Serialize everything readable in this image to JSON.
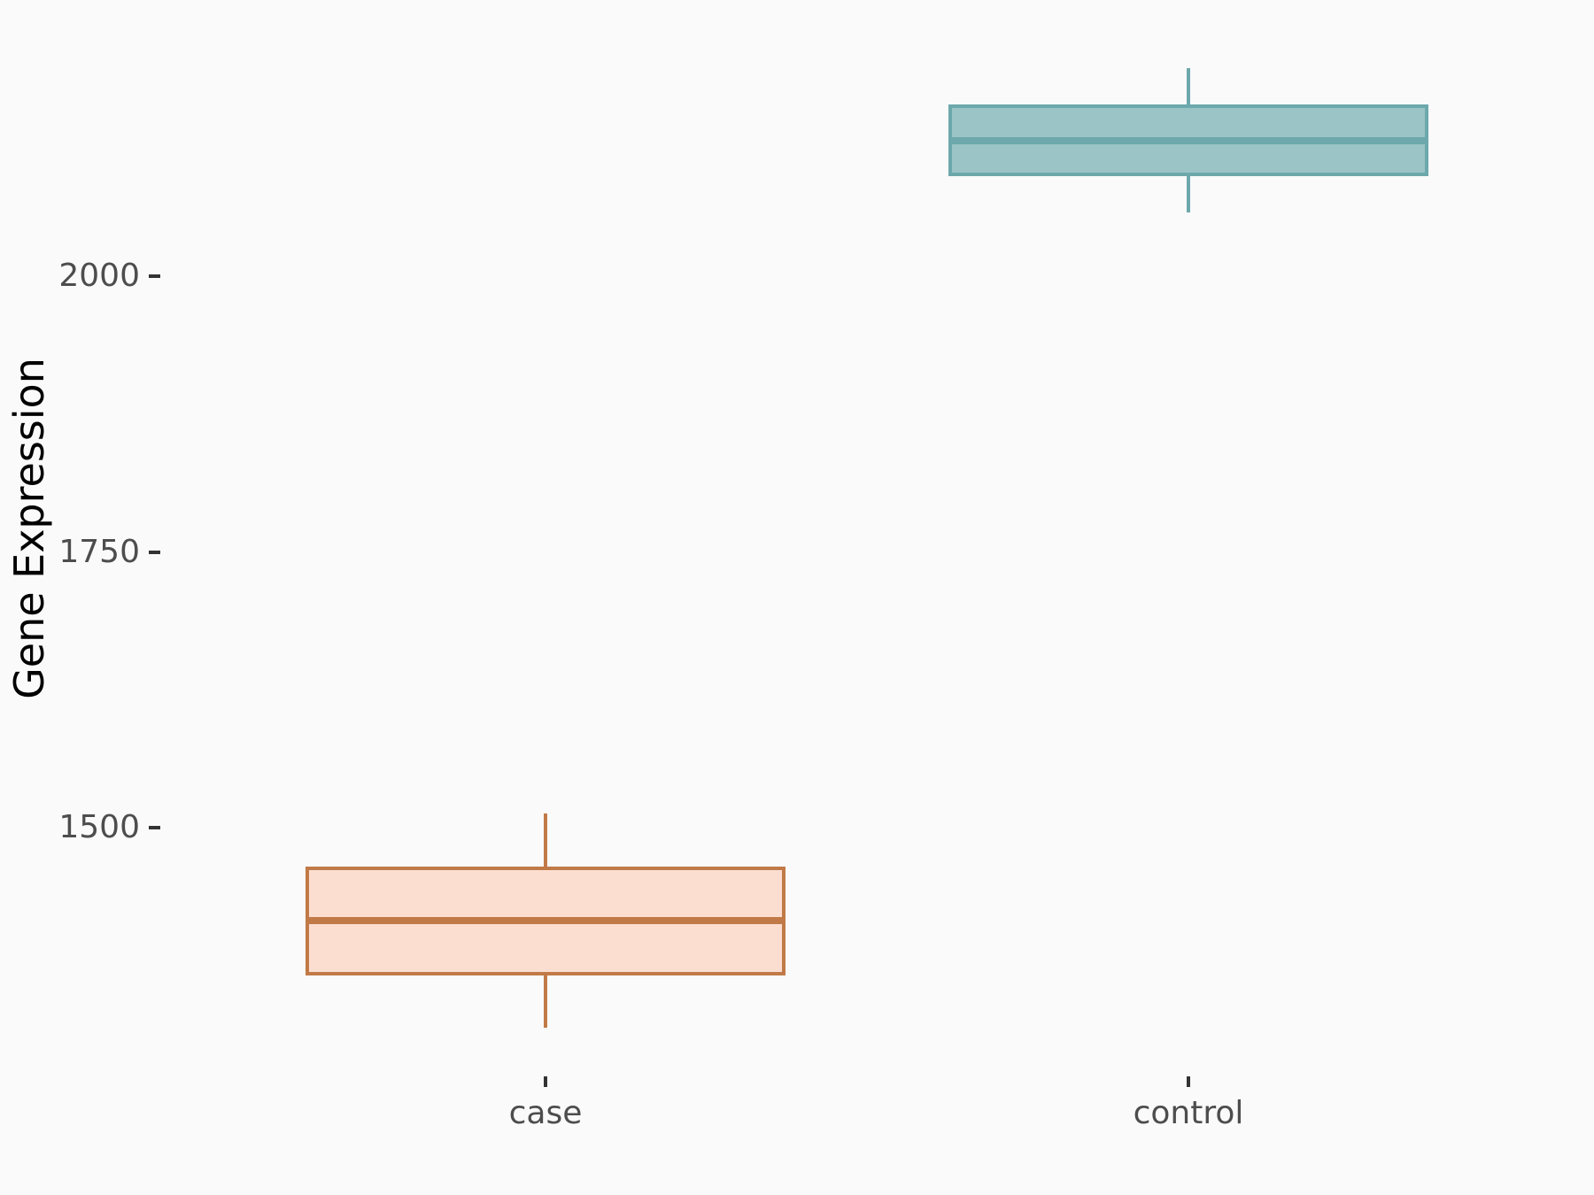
{
  "figure": {
    "background": "#fafafa",
    "axis_text_color": "#4d4d4d",
    "axis_title_color": "#000000",
    "tick_mark_color": "#333333"
  },
  "chart_data": {
    "type": "boxplot",
    "title": "",
    "xlabel": "",
    "ylabel": "Gene Expression",
    "categories": [
      "case",
      "control"
    ],
    "y_ticks": [
      1500,
      1750,
      2000
    ],
    "ylim": [
      1265,
      2240
    ],
    "grid": false,
    "legend": false,
    "series": [
      {
        "name": "case",
        "stats": {
          "whisker_low": 1319,
          "q1": 1366,
          "median": 1416,
          "q3": 1465,
          "whisker_high": 1513
        },
        "fill": "#fcded1",
        "stroke": "#c17a47"
      },
      {
        "name": "control",
        "stats": {
          "whisker_low": 2058,
          "q1": 2091,
          "median": 2123,
          "q3": 2156,
          "whisker_high": 2189
        },
        "fill": "#9ac4c6",
        "stroke": "#6ca8ac"
      }
    ]
  }
}
